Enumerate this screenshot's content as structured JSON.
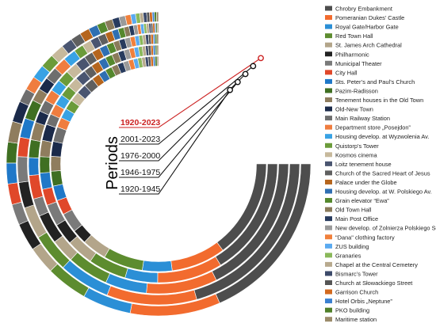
{
  "chart_data": {
    "type": "radial-stacked-bar",
    "title": "",
    "axis_label": "Periods",
    "highlight_color": "#cc2222",
    "legend_placement": "right",
    "periods": [
      {
        "label": "1920-2023",
        "highlight": true
      },
      {
        "label": "2001-2023",
        "highlight": false
      },
      {
        "label": "1976-2000",
        "highlight": false
      },
      {
        "label": "1946-1975",
        "highlight": false
      },
      {
        "label": "1920-1945",
        "highlight": false
      }
    ],
    "categories": [
      {
        "name": "Chrobry Embankment",
        "color": "#4d4d4d"
      },
      {
        "name": "Pomeranian Dukes’ Castle",
        "color": "#f26b2e"
      },
      {
        "name": "Royal Gate/Harbor Gate",
        "color": "#2b8fd6"
      },
      {
        "name": "Red Town Hall",
        "color": "#5d8c2f"
      },
      {
        "name": "St. James Arch Cathedral",
        "color": "#b3a58a"
      },
      {
        "name": "Philharmonic",
        "color": "#222222"
      },
      {
        "name": "Municipal Theater",
        "color": "#7a7a7a"
      },
      {
        "name": "City Hall",
        "color": "#e0482a"
      },
      {
        "name": "Sts. Peter’s and Paul’s Church",
        "color": "#1f78c8"
      },
      {
        "name": "Pazim-Radisson",
        "color": "#3f6f22"
      },
      {
        "name": "Tenement houses in the Old Town",
        "color": "#8f7d5e"
      },
      {
        "name": "Old-New Town",
        "color": "#1b2a4a"
      },
      {
        "name": "Main Railway Station",
        "color": "#6e6e6e"
      },
      {
        "name": "Department store „Posejdon”",
        "color": "#ef7d3f"
      },
      {
        "name": "Housing develop. at Wyzwolenia Av.",
        "color": "#38a2e4"
      },
      {
        "name": "Quistorp’s Tower",
        "color": "#6b9b3a"
      },
      {
        "name": "Kosmos cinema",
        "color": "#c7b99c"
      },
      {
        "name": "Loitz tenement house",
        "color": "#4a5570"
      },
      {
        "name": "Church of the Sacred Heart of Jesus",
        "color": "#5f5f5f"
      },
      {
        "name": "Palace under the Globe",
        "color": "#b5651d"
      },
      {
        "name": "Housing develop. at W. Polskiego Av.",
        "color": "#2f6fb2"
      },
      {
        "name": "Grain elevator “Ewa”",
        "color": "#55882d"
      },
      {
        "name": "Old Town Hall",
        "color": "#8a7a5a"
      },
      {
        "name": "Main Post  Office",
        "color": "#283b5e"
      },
      {
        "name": "New develop. of Zolnierza Polskiego Sq.",
        "color": "#9a9a9a"
      },
      {
        "name": "\"Dana\" clothing factory",
        "color": "#f0803c"
      },
      {
        "name": "ZUS building",
        "color": "#5aaaf0"
      },
      {
        "name": "Granaries",
        "color": "#8ab85a"
      },
      {
        "name": "Chapel at the Central Cemetery",
        "color": "#b8aa8e"
      },
      {
        "name": "Bismarc’s Tower",
        "color": "#3c4a6a"
      },
      {
        "name": "Church at Słowackiego Street",
        "color": "#555555"
      },
      {
        "name": "Garrison Church",
        "color": "#d2691e"
      },
      {
        "name": "Hotel Orbis „Neptune”",
        "color": "#3a80d0"
      },
      {
        "name": "PKO building",
        "color": "#4f7f28"
      },
      {
        "name": "Maritime station",
        "color": "#9c8b6a"
      }
    ],
    "series": [
      {
        "name": "1920-2023",
        "values": [
          25,
          13,
          7,
          6,
          4,
          4,
          3,
          3,
          3,
          3,
          3,
          3,
          2,
          2,
          2,
          2,
          2,
          1.6,
          1.5,
          1.4,
          1.3,
          1.2,
          1.1,
          1.0,
          0.9,
          0.8,
          0.7,
          0.6,
          0.5,
          0.5,
          0.4,
          0.4,
          0.3,
          0.3,
          0.3
        ]
      },
      {
        "name": "2001-2023",
        "values": [
          28,
          14,
          8,
          6,
          5,
          4,
          4,
          3,
          3,
          3,
          2,
          2,
          2,
          2,
          2,
          1.5,
          1.4,
          1.3,
          1.2,
          1.1,
          1.0,
          0.9,
          0.8,
          0.7,
          0.6,
          0.5,
          0.5,
          0.4,
          0.4,
          0.3,
          0.3,
          0.3,
          0.2,
          0.2,
          0.2
        ]
      },
      {
        "name": "1976-2000",
        "values": [
          24,
          12,
          7,
          7,
          4,
          5,
          3,
          4,
          3,
          3,
          3,
          2,
          2,
          2,
          2,
          2,
          2,
          1.8,
          1.5,
          1.4,
          1.3,
          1.2,
          1.0,
          1.0,
          0.9,
          0.8,
          0.7,
          0.6,
          0.5,
          0.5,
          0.4,
          0.4,
          0.3,
          0.3,
          0.3
        ]
      },
      {
        "name": "1946-1975",
        "values": [
          22,
          12,
          6,
          7,
          5,
          4,
          4,
          3,
          3,
          3,
          3,
          3,
          2,
          2,
          2,
          2,
          2,
          2,
          1.6,
          1.5,
          1.4,
          1.3,
          1.2,
          1.1,
          1.0,
          0.9,
          0.8,
          0.7,
          0.6,
          0.5,
          0.5,
          0.4,
          0.4,
          0.3,
          0.3
        ]
      },
      {
        "name": "1920-1945",
        "values": [
          20,
          11,
          6,
          8,
          5,
          3,
          4,
          3,
          3,
          3,
          3,
          3,
          3,
          2,
          2,
          2,
          2,
          2,
          2,
          1.6,
          1.5,
          1.4,
          1.3,
          1.2,
          1.1,
          1.0,
          0.9,
          0.8,
          0.7,
          0.6,
          0.5,
          0.5,
          0.4,
          0.4,
          0.3
        ]
      }
    ]
  }
}
